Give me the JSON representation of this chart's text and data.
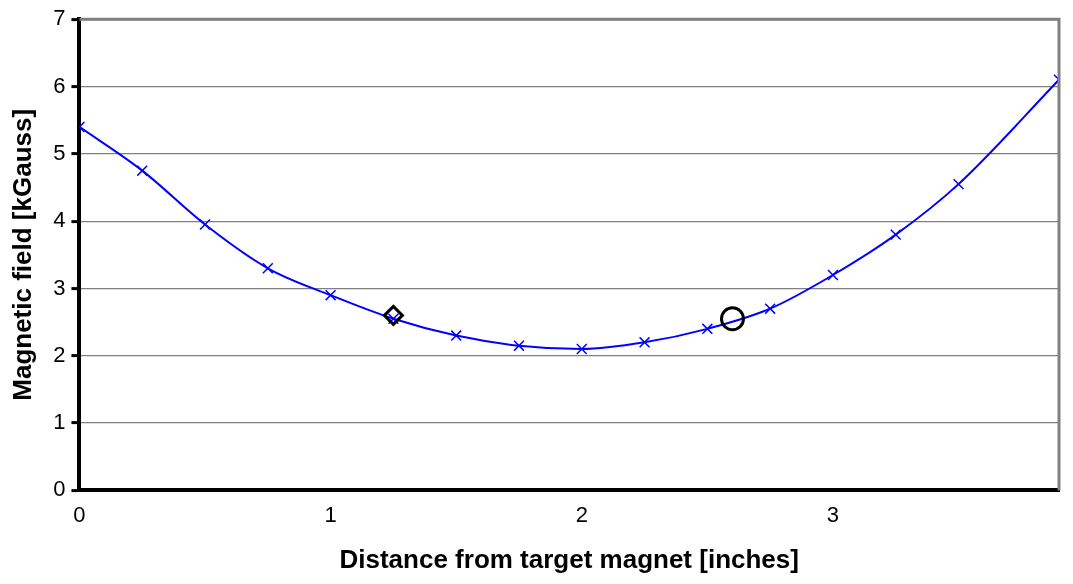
{
  "chart_data": {
    "type": "line",
    "xlabel": "Distance from target magnet [inches]",
    "ylabel": "Magnetic field [kGauss]",
    "xlim": [
      0,
      3.9
    ],
    "xticks": [
      0,
      1,
      2,
      3
    ],
    "ylim": [
      0,
      7
    ],
    "yticks": [
      0,
      1,
      2,
      3,
      4,
      5,
      6,
      7
    ],
    "grid": "y",
    "series": [
      {
        "type": "line",
        "color": "#0000ff",
        "marker": "cross",
        "x": [
          0,
          0.25,
          0.5,
          0.75,
          1,
          1.25,
          1.5,
          1.75,
          2,
          2.25,
          2.5,
          2.75,
          3,
          3.25,
          3.5,
          3.9
        ],
        "values": [
          5.4,
          4.75,
          3.95,
          3.3,
          2.9,
          2.55,
          2.3,
          2.15,
          2.1,
          2.2,
          2.4,
          2.7,
          3.2,
          3.8,
          4.55,
          6.1
        ]
      },
      {
        "type": "scatter",
        "color": "#000000",
        "marker": "diamond",
        "x": [
          1.25
        ],
        "values": [
          2.6
        ]
      },
      {
        "type": "scatter",
        "color": "#000000",
        "marker": "circle",
        "x": [
          2.6
        ],
        "values": [
          2.55
        ]
      }
    ]
  }
}
